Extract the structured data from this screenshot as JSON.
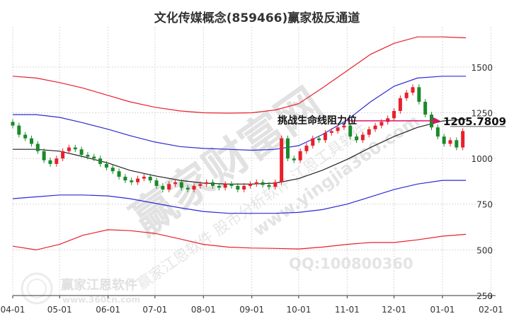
{
  "chart_data": {
    "type": "line",
    "title": "文化传媒概念(859466)赢家极反通道",
    "xlabel": "",
    "ylabel": "",
    "ylim": [
      250,
      1720
    ],
    "x_tick_labels": [
      "04-01",
      "05-01",
      "06-01",
      "07-01",
      "08-01",
      "09-01",
      "10-01",
      "11-01",
      "12-01",
      "01-01",
      "02-01"
    ],
    "x_tick_days": [
      0,
      30,
      61,
      91,
      122,
      153,
      183,
      214,
      244,
      275,
      306
    ],
    "y_ticks": [
      250,
      500,
      750,
      1000,
      1250,
      1500
    ],
    "grid": true,
    "series": [
      {
        "key": "outer_upper",
        "color": "#e8202a",
        "x": [
          0,
          15,
          30,
          45,
          61,
          75,
          91,
          107,
          122,
          138,
          153,
          168,
          183,
          198,
          214,
          229,
          244,
          259,
          275,
          290
        ],
        "values": [
          1450,
          1440,
          1415,
          1385,
          1345,
          1310,
          1280,
          1260,
          1250,
          1248,
          1250,
          1265,
          1300,
          1385,
          1480,
          1570,
          1630,
          1665,
          1665,
          1660
        ]
      },
      {
        "key": "inner_upper",
        "color": "#2b2bd6",
        "x": [
          0,
          15,
          30,
          45,
          61,
          75,
          91,
          107,
          122,
          138,
          153,
          168,
          183,
          198,
          214,
          229,
          244,
          259,
          275,
          290
        ],
        "values": [
          1240,
          1240,
          1225,
          1195,
          1160,
          1125,
          1090,
          1065,
          1055,
          1050,
          1045,
          1050,
          1070,
          1130,
          1210,
          1310,
          1395,
          1440,
          1450,
          1450
        ]
      },
      {
        "key": "midline",
        "color": "#222222",
        "x": [
          0,
          15,
          30,
          45,
          61,
          75,
          91,
          107,
          122,
          138,
          153,
          168,
          183,
          198,
          214,
          229,
          244,
          259,
          275,
          290
        ],
        "values": [
          1050,
          1050,
          1040,
          1010,
          975,
          935,
          905,
          880,
          865,
          860,
          860,
          865,
          890,
          935,
          995,
          1060,
          1120,
          1170,
          1205,
          1215
        ]
      },
      {
        "key": "inner_lower",
        "color": "#2b2bd6",
        "x": [
          0,
          15,
          30,
          45,
          61,
          75,
          91,
          107,
          122,
          138,
          153,
          168,
          183,
          198,
          214,
          229,
          244,
          259,
          275,
          290
        ],
        "values": [
          780,
          790,
          800,
          800,
          795,
          780,
          755,
          730,
          710,
          700,
          700,
          700,
          705,
          720,
          750,
          790,
          830,
          860,
          880,
          880
        ]
      },
      {
        "key": "outer_lower",
        "color": "#e8202a",
        "x": [
          0,
          15,
          30,
          45,
          61,
          75,
          91,
          107,
          122,
          138,
          153,
          168,
          183,
          198,
          214,
          229,
          244,
          259,
          275,
          290
        ],
        "values": [
          520,
          500,
          530,
          580,
          610,
          605,
          590,
          560,
          530,
          515,
          510,
          508,
          505,
          515,
          530,
          540,
          540,
          555,
          575,
          585
        ]
      }
    ],
    "candles": {
      "color_up": "#e8202a",
      "color_down": "#1a8a2a",
      "x": [
        0,
        4,
        8,
        12,
        16,
        20,
        24,
        28,
        32,
        36,
        40,
        44,
        48,
        52,
        56,
        60,
        64,
        68,
        72,
        76,
        80,
        84,
        88,
        92,
        96,
        100,
        104,
        108,
        112,
        116,
        120,
        124,
        128,
        132,
        136,
        140,
        144,
        148,
        152,
        156,
        160,
        164,
        168,
        172,
        176,
        180,
        184,
        188,
        192,
        196,
        200,
        204,
        208,
        212,
        216,
        220,
        224,
        228,
        232,
        236,
        240,
        244,
        248,
        252,
        256,
        260,
        264,
        268,
        272,
        276,
        280,
        284,
        288
      ],
      "close": [
        1180,
        1130,
        1110,
        1080,
        1040,
        990,
        970,
        1000,
        1040,
        1060,
        1050,
        1020,
        1010,
        1000,
        970,
        950,
        930,
        900,
        880,
        870,
        890,
        900,
        880,
        850,
        830,
        860,
        870,
        840,
        830,
        850,
        860,
        870,
        850,
        840,
        860,
        850,
        830,
        850,
        860,
        870,
        855,
        845,
        870,
        1110,
        1000,
        990,
        1040,
        1070,
        1110,
        1100,
        1140,
        1150,
        1170,
        1180,
        1120,
        1100,
        1130,
        1160,
        1180,
        1200,
        1220,
        1260,
        1330,
        1360,
        1390,
        1310,
        1240,
        1170,
        1120,
        1080,
        1100,
        1060,
        1150
      ]
    },
    "annotation": {
      "label": "挑战生命线阻力位",
      "value": 1205.7809,
      "value_text": "1205.7809",
      "color": "#e0106a"
    }
  },
  "watermarks": {
    "brand_diagonal": "赢家财富网",
    "brand_sub": "赢家江恩软件  股市分析软件  江恩工具软件",
    "site": "www.yingjia360.com",
    "qq": "QQ:100800360",
    "logo_text": "赢家江恩软件",
    "logo_site": "www.360cn.com"
  }
}
